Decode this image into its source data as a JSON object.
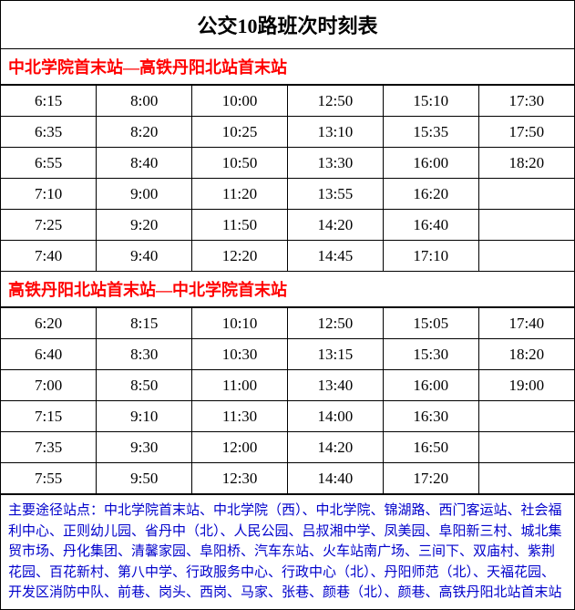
{
  "title": "公交10路班次时刻表",
  "colors": {
    "direction_header_text": "#ff0000",
    "notes_text": "#0000cc",
    "border": "#000000",
    "background": "#ffffff",
    "body_text": "#000000"
  },
  "directions": [
    {
      "label": "中北学院首末站—高铁丹阳北站首末站",
      "rows": [
        [
          "6:15",
          "8:00",
          "10:00",
          "12:50",
          "15:10",
          "17:30"
        ],
        [
          "6:35",
          "8:20",
          "10:25",
          "13:10",
          "15:35",
          "17:50"
        ],
        [
          "6:55",
          "8:40",
          "10:50",
          "13:30",
          "16:00",
          "18:20"
        ],
        [
          "7:10",
          "9:00",
          "11:20",
          "13:55",
          "16:20",
          ""
        ],
        [
          "7:25",
          "9:20",
          "11:50",
          "14:20",
          "16:40",
          ""
        ],
        [
          "7:40",
          "9:40",
          "12:20",
          "14:45",
          "17:10",
          ""
        ]
      ]
    },
    {
      "label": "高铁丹阳北站首末站—中北学院首末站",
      "rows": [
        [
          "6:20",
          "8:15",
          "10:10",
          "12:50",
          "15:05",
          "17:40"
        ],
        [
          "6:40",
          "8:30",
          "10:30",
          "13:15",
          "15:30",
          "18:20"
        ],
        [
          "7:00",
          "8:50",
          "11:00",
          "13:40",
          "16:00",
          "19:00"
        ],
        [
          "7:15",
          "9:10",
          "11:30",
          "14:00",
          "16:30",
          ""
        ],
        [
          "7:35",
          "9:30",
          "12:00",
          "14:20",
          "16:50",
          ""
        ],
        [
          "7:55",
          "9:50",
          "12:30",
          "14:40",
          "17:20",
          ""
        ]
      ]
    }
  ],
  "notes": "主要途径站点：中北学院首末站、中北学院（西）、中北学院、锦湖路、西门客运站、社会福利中心、正则幼儿园、省丹中（北）、人民公园、吕叔湘中学、凤美园、阜阳新三村、城北集贸市场、丹化集团、清馨家园、阜阳桥、汽车东站、火车站南广场、三间下、双庙村、紫荆花园、百花新村、第八中学、行政服务中心、行政中心（北）、丹阳师范（北）、天福花园、开发区消防中队、前巷、岗头、西岗、马家、张巷、颜巷（北）、颜巷、高铁丹阳北站首末站"
}
